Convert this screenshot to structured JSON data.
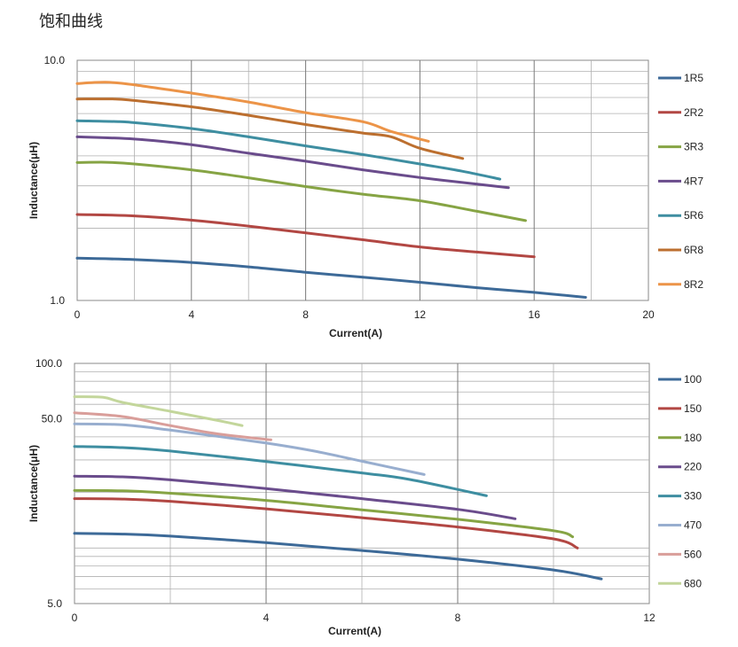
{
  "page": {
    "title": "饱和曲线"
  },
  "chart_data": [
    {
      "type": "line",
      "xlabel": "Current(A)",
      "ylabel": "Inductance(μH)",
      "xlim": [
        0,
        20
      ],
      "ylim": [
        1.0,
        10.0
      ],
      "y_scale": "log",
      "xticks": [
        "0",
        "4",
        "8",
        "12",
        "16",
        "20"
      ],
      "yticks": [
        "1.0",
        "10.0"
      ],
      "legend_position": "right",
      "series": [
        {
          "name": "1R5",
          "color": "#3d6a98",
          "x": [
            0,
            2,
            4,
            6,
            8,
            10,
            12,
            14,
            16,
            17.8
          ],
          "y": [
            1.5,
            1.48,
            1.44,
            1.38,
            1.31,
            1.25,
            1.19,
            1.13,
            1.08,
            1.03
          ]
        },
        {
          "name": "2R2",
          "color": "#b24743",
          "x": [
            0,
            2,
            4,
            6,
            8,
            10,
            12,
            14,
            16
          ],
          "y": [
            2.28,
            2.25,
            2.16,
            2.04,
            1.91,
            1.79,
            1.67,
            1.59,
            1.52
          ]
        },
        {
          "name": "3R3",
          "color": "#86a444",
          "x": [
            0,
            1,
            2,
            4,
            6,
            8,
            10,
            12,
            14,
            15.7
          ],
          "y": [
            3.75,
            3.76,
            3.7,
            3.5,
            3.24,
            2.98,
            2.77,
            2.6,
            2.35,
            2.15
          ]
        },
        {
          "name": "4R7",
          "color": "#6a4c8c",
          "x": [
            0,
            2,
            4,
            6,
            8,
            10,
            12,
            14,
            15.1
          ],
          "y": [
            4.8,
            4.7,
            4.45,
            4.1,
            3.8,
            3.5,
            3.25,
            3.05,
            2.95
          ]
        },
        {
          "name": "5R6",
          "color": "#3e8ea1",
          "x": [
            0,
            1.5,
            2,
            4,
            6,
            8,
            10,
            12,
            13.5,
            14.8
          ],
          "y": [
            5.6,
            5.55,
            5.5,
            5.2,
            4.8,
            4.4,
            4.05,
            3.7,
            3.45,
            3.2
          ]
        },
        {
          "name": "6R8",
          "color": "#bc6f2f",
          "x": [
            0,
            1.3,
            2,
            4,
            6,
            8,
            10,
            11,
            12,
            13.5
          ],
          "y": [
            6.9,
            6.9,
            6.8,
            6.4,
            5.9,
            5.4,
            4.98,
            4.8,
            4.3,
            3.9
          ]
        },
        {
          "name": "8R2",
          "color": "#ec9448",
          "x": [
            0,
            1,
            2,
            4,
            6,
            8,
            10,
            11,
            12.3
          ],
          "y": [
            8.0,
            8.1,
            7.9,
            7.3,
            6.7,
            6.05,
            5.55,
            5.05,
            4.6
          ]
        }
      ]
    },
    {
      "type": "line",
      "xlabel": "Current(A)",
      "ylabel": "Inductance(μH)",
      "xlim": [
        0,
        12
      ],
      "ylim": [
        5.0,
        100.0
      ],
      "y_scale": "log",
      "xticks": [
        "0",
        "4",
        "8",
        "12"
      ],
      "yticks": [
        "5.0",
        "50.0",
        "100.0"
      ],
      "legend_position": "right",
      "series": [
        {
          "name": "100",
          "color": "#3d6a98",
          "x": [
            0,
            1,
            2,
            4,
            6,
            8,
            10,
            11
          ],
          "y": [
            12.0,
            11.9,
            11.6,
            10.7,
            9.7,
            8.7,
            7.6,
            6.8
          ]
        },
        {
          "name": "150",
          "color": "#b24743",
          "x": [
            0,
            1,
            2,
            4,
            6,
            8,
            10,
            10.5
          ],
          "y": [
            18.5,
            18.4,
            17.9,
            16.3,
            14.6,
            13.0,
            11.2,
            10.0
          ]
        },
        {
          "name": "180",
          "color": "#86a444",
          "x": [
            0,
            1,
            2,
            4,
            6,
            8,
            10,
            10.4
          ],
          "y": [
            20.5,
            20.4,
            19.8,
            18.1,
            16.1,
            14.3,
            12.4,
            11.5
          ]
        },
        {
          "name": "220",
          "color": "#6a4c8c",
          "x": [
            0,
            1,
            2,
            4,
            6,
            8,
            9.2
          ],
          "y": [
            24.5,
            24.3,
            23.4,
            21.0,
            18.5,
            16.2,
            14.4
          ]
        },
        {
          "name": "330",
          "color": "#3e8ea1",
          "x": [
            0,
            1,
            2,
            4,
            6,
            7,
            8.6
          ],
          "y": [
            35.5,
            35.0,
            33.5,
            29.4,
            25.5,
            23.5,
            19.2
          ]
        },
        {
          "name": "470",
          "color": "#98aecf",
          "x": [
            0,
            1,
            2,
            4,
            5,
            6,
            7.3
          ],
          "y": [
            47.0,
            46.5,
            43.5,
            37.0,
            33.5,
            29.5,
            25.0
          ]
        },
        {
          "name": "560",
          "color": "#d99e9a",
          "x": [
            0,
            1,
            2,
            3,
            4.1
          ],
          "y": [
            54.0,
            51.5,
            46.0,
            41.5,
            38.5
          ]
        },
        {
          "name": "680",
          "color": "#c3d69b",
          "x": [
            0,
            0.6,
            1,
            2,
            3,
            3.5
          ],
          "y": [
            66.0,
            65.5,
            61.5,
            55.0,
            49.0,
            46.0
          ]
        }
      ]
    }
  ]
}
